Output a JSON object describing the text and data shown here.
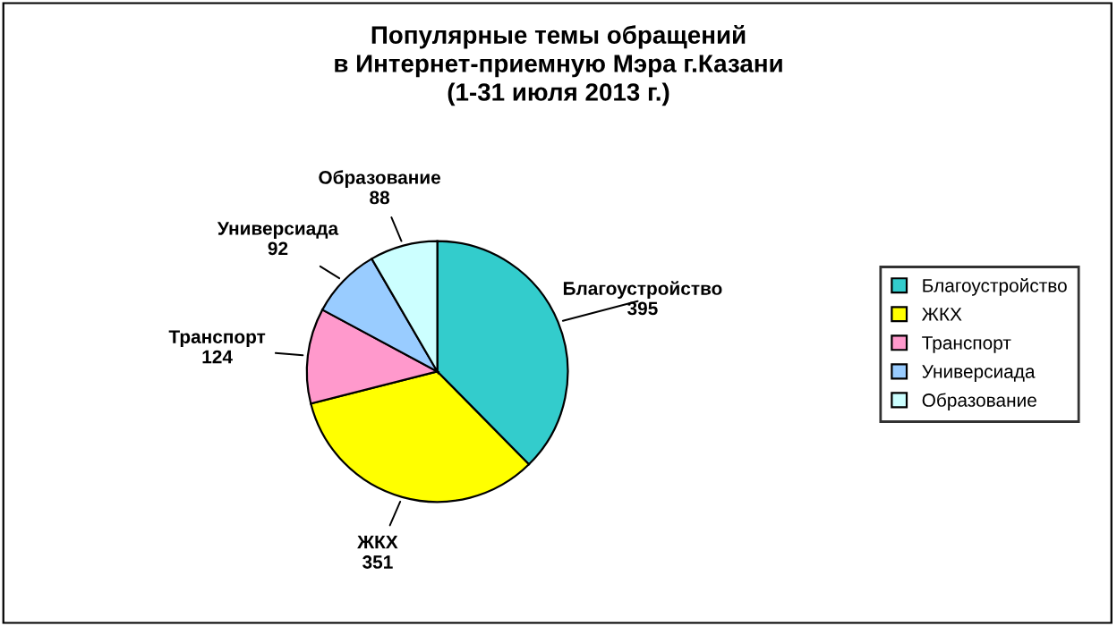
{
  "chart_data": {
    "type": "pie",
    "title": "Популярные темы обращений\nв Интернет-приемную Мэра г.Казани\n(1-31 июля 2013 г.)",
    "categories": [
      "Благоустройство",
      "ЖКХ",
      "Транспорт",
      "Универсиада",
      "Образование"
    ],
    "values": [
      395,
      351,
      124,
      92,
      88
    ],
    "colors": [
      "#33cccc",
      "#ffff00",
      "#ff99cc",
      "#99ccff",
      "#ccffff"
    ],
    "data_labels": true,
    "legend": "right"
  }
}
